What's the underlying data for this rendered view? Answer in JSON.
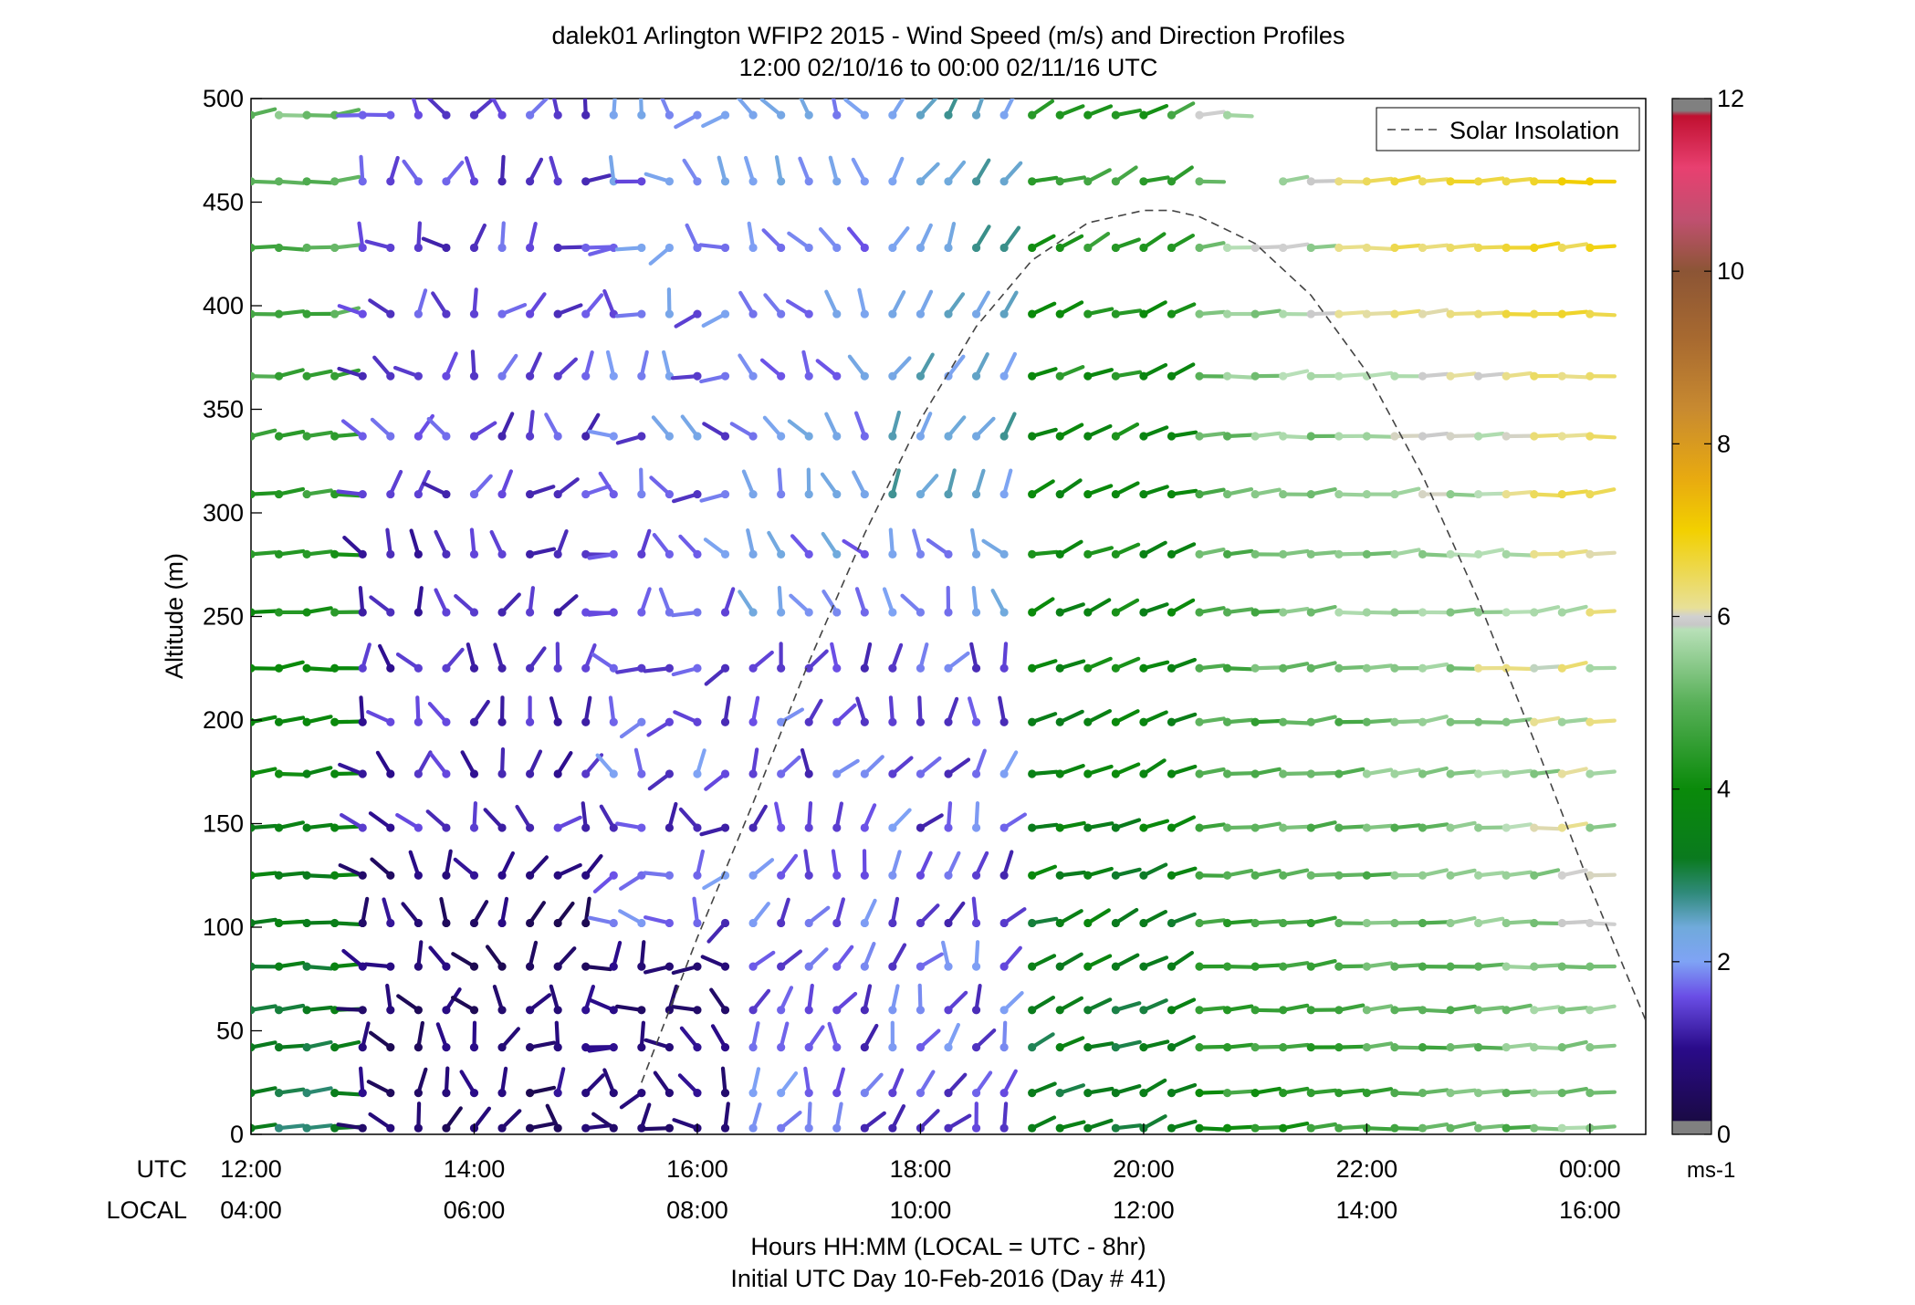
{
  "chart_data": {
    "type": "scatter",
    "title": "dalek01 Arlington WFIP2 2015 - Wind Speed (m/s) and Direction Profiles",
    "subtitle": "12:00 02/10/16 to 00:00 02/11/16  UTC",
    "ylabel": "Altitude (m)",
    "xlabel": "Hours HH:MM  (LOCAL = UTC - 8hr)",
    "xlabel2": "Initial UTC Day 10-Feb-2016 (Day # 41)",
    "x_row_label_utc": "UTC",
    "x_row_label_local": "LOCAL",
    "xlim": [
      12.0,
      24.5
    ],
    "ylim": [
      0,
      500
    ],
    "x_ticks": [
      12,
      14,
      16,
      18,
      20,
      22,
      24
    ],
    "x_tick_labels_utc": [
      "12:00",
      "14:00",
      "16:00",
      "18:00",
      "20:00",
      "22:00",
      "00:00"
    ],
    "x_tick_labels_local": [
      "04:00",
      "06:00",
      "08:00",
      "10:00",
      "12:00",
      "14:00",
      "16:00"
    ],
    "y_ticks": [
      0,
      50,
      100,
      150,
      200,
      250,
      300,
      350,
      400,
      450,
      500
    ],
    "y_tick_labels": [
      "0",
      "50",
      "100",
      "150",
      "200",
      "250",
      "300",
      "350",
      "400",
      "450",
      "500"
    ],
    "heights": [
      3,
      20,
      42,
      60,
      81,
      102,
      125,
      148,
      174,
      199,
      225,
      252,
      280,
      309,
      337,
      366,
      396,
      428,
      460,
      492
    ],
    "profile_interval_min": 15,
    "first_profile_utc": 12.0,
    "legend": {
      "label": "Solar Insolation",
      "placement": "top-right"
    },
    "solar_insolation": {
      "x": [
        15.5,
        16.0,
        16.5,
        17.0,
        17.5,
        18.0,
        18.5,
        19.0,
        19.5,
        20.0,
        20.25,
        20.5,
        21.0,
        21.5,
        22.0,
        22.5,
        23.0,
        23.5,
        24.0,
        24.5
      ],
      "y": [
        25,
        95,
        160,
        228,
        290,
        345,
        390,
        422,
        440,
        446,
        446,
        443,
        430,
        405,
        368,
        318,
        258,
        190,
        120,
        55
      ]
    },
    "colorbar": {
      "min": 0,
      "max": 12,
      "ticks": [
        0,
        2,
        4,
        6,
        8,
        10,
        12
      ],
      "tick_labels": [
        "0",
        "2",
        "4",
        "6",
        "8",
        "10",
        "12"
      ],
      "unit_label": "ms-1",
      "stops": [
        [
          0.0,
          "#808080"
        ],
        [
          0.15,
          "#808080"
        ],
        [
          0.16,
          "#1a0a45"
        ],
        [
          1.0,
          "#2a0b8a"
        ],
        [
          1.6,
          "#6a4ee6"
        ],
        [
          2.0,
          "#7fa3f5"
        ],
        [
          2.4,
          "#70aadb"
        ],
        [
          2.8,
          "#2f8a7a"
        ],
        [
          3.2,
          "#0a7a1e"
        ],
        [
          4.0,
          "#0a8a0a"
        ],
        [
          5.0,
          "#58b058"
        ],
        [
          5.85,
          "#b8e0b8"
        ],
        [
          5.9,
          "#c8c8c8"
        ],
        [
          6.0,
          "#d0d0d0"
        ],
        [
          6.1,
          "#e8e098"
        ],
        [
          7.0,
          "#f2d000"
        ],
        [
          7.6,
          "#e8aa10"
        ],
        [
          8.4,
          "#c88a30"
        ],
        [
          9.2,
          "#a86a30"
        ],
        [
          10.0,
          "#8c5535"
        ],
        [
          10.6,
          "#c05070"
        ],
        [
          11.2,
          "#e84070"
        ],
        [
          11.8,
          "#c01030"
        ],
        [
          11.86,
          "#808080"
        ],
        [
          12.0,
          "#808080"
        ]
      ]
    }
  }
}
